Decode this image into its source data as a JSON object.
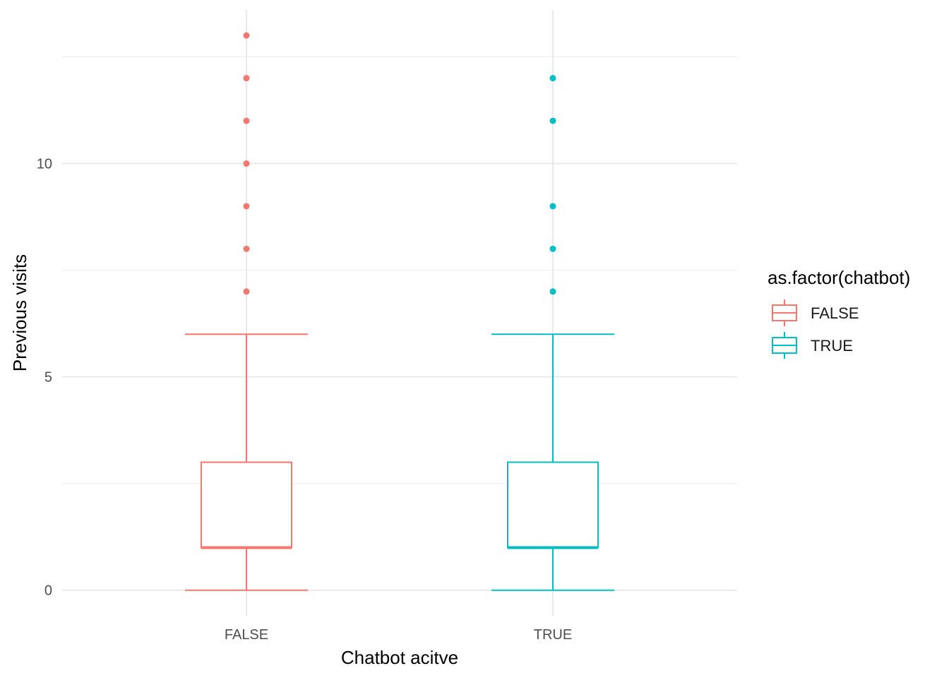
{
  "chart_data": {
    "type": "boxplot",
    "xlabel": "Chatbot acitve",
    "ylabel": "Previous visits",
    "categories": [
      "FALSE",
      "TRUE"
    ],
    "ylim": [
      -0.6,
      13.6
    ],
    "y_ticks": [
      0,
      5,
      10
    ],
    "y_tick_labels": [
      "0",
      "5",
      "10"
    ],
    "grid": true,
    "legend": {
      "title": "as.factor(chatbot)",
      "placement": "right",
      "entries": [
        "FALSE",
        "TRUE"
      ]
    },
    "series": [
      {
        "name": "FALSE",
        "color": "#F8766D",
        "whisker_low": 0,
        "q1": 1,
        "median": 1,
        "q3": 3,
        "whisker_high": 6,
        "outliers": [
          7,
          8,
          9,
          10,
          11,
          12,
          13
        ]
      },
      {
        "name": "TRUE",
        "color": "#00BFC4",
        "whisker_low": 0,
        "q1": 1,
        "median": 1,
        "q3": 3,
        "whisker_high": 6,
        "outliers": [
          7,
          8,
          9,
          11,
          12
        ]
      }
    ]
  }
}
